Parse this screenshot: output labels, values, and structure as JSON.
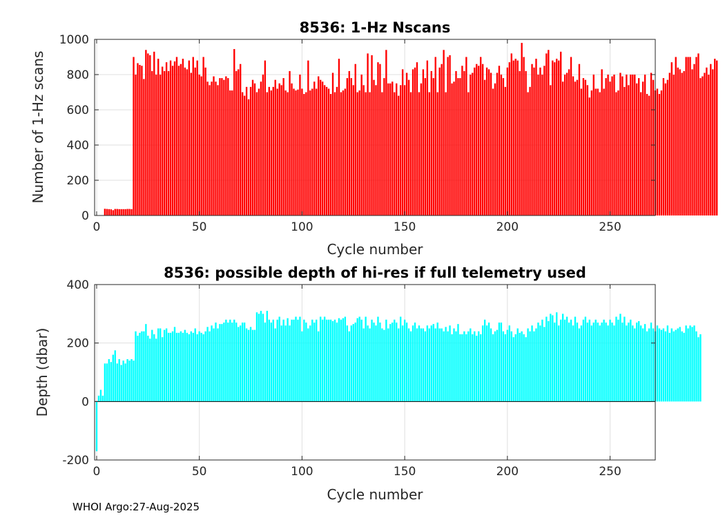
{
  "footer": "WHOI Argo:27-Aug-2025",
  "chart_data": [
    {
      "type": "bar",
      "title": "8536: 1-Hz Nscans",
      "xlabel": "Cycle number",
      "ylabel": "Number of 1-Hz scans",
      "xlim": [
        -1,
        272
      ],
      "ylim": [
        0,
        1000
      ],
      "xticks": [
        0,
        50,
        100,
        150,
        200,
        250
      ],
      "yticks": [
        0,
        200,
        400,
        600,
        800,
        1000
      ],
      "grid": true,
      "color": "#ff0000",
      "x_start": 4,
      "values": [
        38,
        37,
        36,
        35,
        30,
        37,
        37,
        36,
        36,
        36,
        36,
        37,
        37,
        36,
        900,
        800,
        865,
        855,
        850,
        775,
        940,
        920,
        910,
        820,
        930,
        800,
        890,
        800,
        845,
        820,
        870,
        820,
        880,
        850,
        875,
        900,
        850,
        860,
        890,
        840,
        830,
        880,
        810,
        900,
        840,
        880,
        800,
        790,
        900,
        840,
        760,
        740,
        760,
        790,
        760,
        740,
        780,
        780,
        770,
        790,
        780,
        710,
        710,
        945,
        820,
        830,
        860,
        700,
        680,
        730,
        660,
        730,
        770,
        750,
        700,
        720,
        760,
        800,
        880,
        700,
        730,
        710,
        730,
        770,
        720,
        750,
        740,
        780,
        710,
        700,
        820,
        750,
        720,
        710,
        715,
        800,
        720,
        690,
        700,
        880,
        710,
        720,
        760,
        720,
        790,
        770,
        760,
        740,
        730,
        720,
        690,
        810,
        700,
        730,
        890,
        700,
        710,
        720,
        780,
        820,
        780,
        740,
        860,
        700,
        710,
        800,
        740,
        700,
        920,
        700,
        910,
        770,
        740,
        870,
        860,
        700,
        780,
        940,
        750,
        750,
        760,
        700,
        750,
        680,
        740,
        830,
        740,
        810,
        770,
        700,
        830,
        840,
        870,
        700,
        750,
        830,
        780,
        880,
        700,
        820,
        780,
        900,
        700,
        840,
        860,
        940,
        700,
        900,
        910,
        750,
        760,
        820,
        780,
        780,
        850,
        820,
        900,
        700,
        800,
        810,
        840,
        860,
        850,
        900,
        860,
        770,
        840,
        830,
        810,
        720,
        750,
        810,
        850,
        800,
        780,
        730,
        840,
        870,
        920,
        880,
        890,
        880,
        820,
        980,
        900,
        820,
        700,
        730,
        860,
        840,
        890,
        800,
        840,
        800,
        850,
        920,
        940,
        740,
        880,
        870,
        890,
        880,
        930,
        760,
        800,
        810,
        830,
        900,
        790,
        760,
        770,
        860,
        720,
        780,
        770,
        740,
        670,
        710,
        800,
        720,
        720,
        700,
        830,
        720,
        780,
        800,
        760,
        790,
        800,
        700,
        710,
        810,
        790,
        730,
        800,
        740,
        800,
        800,
        800,
        750,
        780,
        700,
        760,
        800,
        690,
        680,
        810,
        770,
        710,
        720,
        690,
        710,
        780,
        750,
        770,
        810,
        870,
        800,
        900,
        840,
        830,
        810,
        820,
        900,
        900,
        900,
        830,
        860,
        900,
        920,
        780,
        790,
        810,
        840,
        800,
        860,
        830,
        890,
        880
      ]
    },
    {
      "type": "bar",
      "title": "8536: possible depth of hi-res if full telemetry used",
      "xlabel": "Cycle number",
      "ylabel": "Depth (dbar)",
      "xlim": [
        -1,
        272
      ],
      "ylim": [
        -200,
        400
      ],
      "xticks": [
        0,
        50,
        100,
        150,
        200,
        250
      ],
      "yticks": [
        -200,
        0,
        200,
        400
      ],
      "grid": true,
      "color": "#00ffff",
      "x_start": 0,
      "values": [
        -170,
        20,
        40,
        20,
        130,
        130,
        145,
        135,
        160,
        175,
        130,
        145,
        125,
        140,
        130,
        145,
        140,
        145,
        140,
        240,
        225,
        235,
        240,
        240,
        265,
        225,
        215,
        245,
        230,
        215,
        250,
        250,
        220,
        245,
        250,
        235,
        235,
        240,
        255,
        235,
        235,
        240,
        235,
        245,
        235,
        230,
        240,
        235,
        250,
        230,
        240,
        235,
        230,
        240,
        255,
        240,
        260,
        250,
        270,
        250,
        265,
        265,
        270,
        280,
        270,
        280,
        270,
        280,
        270,
        255,
        260,
        270,
        270,
        250,
        245,
        255,
        245,
        245,
        305,
        300,
        310,
        300,
        270,
        310,
        280,
        270,
        280,
        250,
        280,
        290,
        260,
        280,
        260,
        285,
        260,
        280,
        280,
        290,
        280,
        290,
        240,
        280,
        270,
        250,
        260,
        280,
        270,
        280,
        240,
        290,
        280,
        290,
        280,
        280,
        280,
        275,
        280,
        270,
        285,
        280,
        285,
        290,
        260,
        240,
        260,
        265,
        270,
        285,
        290,
        280,
        250,
        290,
        260,
        250,
        280,
        270,
        260,
        290,
        270,
        250,
        245,
        280,
        250,
        265,
        270,
        280,
        270,
        250,
        290,
        260,
        280,
        270,
        250,
        240,
        260,
        270,
        250,
        260,
        250,
        250,
        240,
        260,
        250,
        260,
        265,
        250,
        270,
        250,
        250,
        240,
        255,
        240,
        260,
        230,
        250,
        240,
        265,
        230,
        230,
        240,
        230,
        240,
        250,
        230,
        240,
        225,
        240,
        230,
        260,
        280,
        260,
        270,
        250,
        230,
        240,
        245,
        270,
        270,
        240,
        230,
        245,
        260,
        240,
        220,
        230,
        250,
        235,
        240,
        230,
        220,
        250,
        240,
        260,
        240,
        250,
        270,
        260,
        280,
        255,
        290,
        275,
        300,
        295,
        270,
        305,
        260,
        280,
        300,
        280,
        290,
        270,
        280,
        260,
        290,
        270,
        250,
        260,
        280,
        290,
        270,
        280,
        260,
        270,
        280,
        270,
        260,
        270,
        280,
        270,
        260,
        280,
        270,
        260,
        290,
        280,
        300,
        270,
        290,
        260,
        270,
        280,
        260,
        250,
        270,
        275,
        260,
        250,
        265,
        240,
        250,
        270,
        250,
        240,
        260,
        250,
        245,
        250,
        240,
        260,
        235,
        250,
        240,
        245,
        250,
        255,
        240,
        235,
        260,
        250,
        260,
        255,
        260,
        240,
        220,
        230
      ]
    }
  ]
}
